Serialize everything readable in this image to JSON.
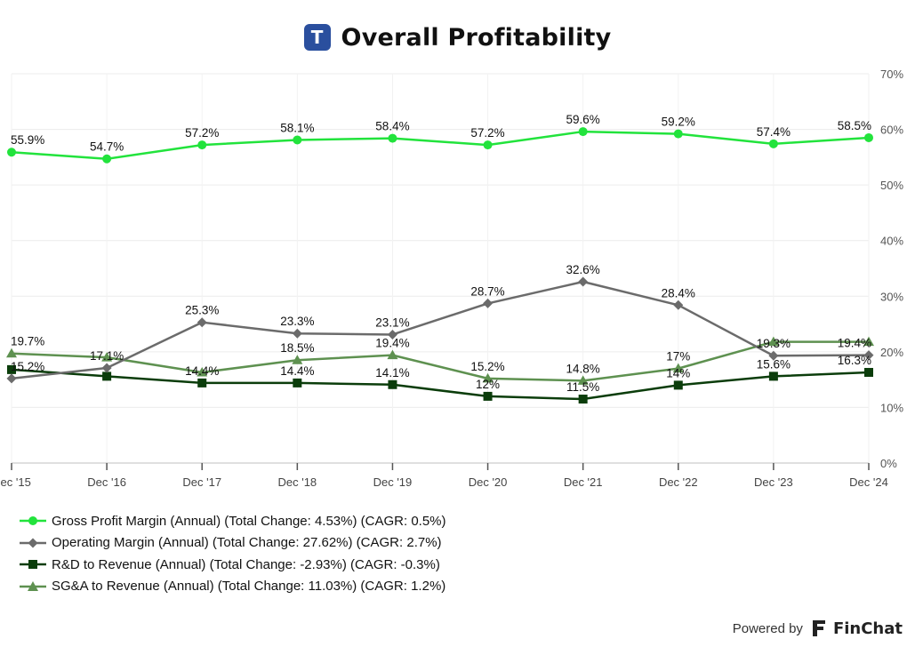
{
  "header": {
    "logo_letter": "T",
    "title": "Overall Profitability"
  },
  "chart_data": {
    "type": "line",
    "title": "Overall Profitability",
    "categories": [
      "Dec '15",
      "Dec '16",
      "Dec '17",
      "Dec '18",
      "Dec '19",
      "Dec '20",
      "Dec '21",
      "Dec '22",
      "Dec '23",
      "Dec '24"
    ],
    "ylim": [
      0,
      70
    ],
    "yticks": [
      0,
      10,
      20,
      30,
      40,
      50,
      60,
      70
    ],
    "ytick_labels": [
      "0%",
      "10%",
      "20%",
      "30%",
      "40%",
      "50%",
      "60%",
      "70%"
    ],
    "y_axis_position": "right",
    "grid": true,
    "series": [
      {
        "name": "Gross Profit Margin",
        "marker": "circle",
        "color": "#22e33c",
        "values": [
          55.9,
          54.7,
          57.2,
          58.1,
          58.4,
          57.2,
          59.6,
          59.2,
          57.4,
          58.5
        ],
        "labels": [
          "55.9%",
          "54.7%",
          "57.2%",
          "58.1%",
          "58.4%",
          "57.2%",
          "59.6%",
          "59.2%",
          "57.4%",
          "58.5%"
        ]
      },
      {
        "name": "Operating Margin",
        "marker": "diamond",
        "color": "#6b6b6b",
        "values": [
          15.2,
          17.1,
          25.3,
          23.3,
          23.1,
          28.7,
          32.6,
          28.4,
          19.3,
          19.4
        ],
        "labels": [
          "15.2%",
          "17.1%",
          "25.3%",
          "23.3%",
          "23.1%",
          "28.7%",
          "32.6%",
          "28.4%",
          "19.3%",
          "19.4%"
        ]
      },
      {
        "name": "R&D to Revenue",
        "marker": "square",
        "color": "#0b3d0b",
        "values": [
          16.8,
          15.6,
          14.4,
          14.4,
          14.1,
          12,
          11.5,
          14,
          15.6,
          16.3
        ],
        "labels": [
          "",
          "",
          "14.4%",
          "14.4%",
          "14.1%",
          "12%",
          "11.5%",
          "14%",
          "15.6%",
          "16.3%"
        ]
      },
      {
        "name": "SG&A to Revenue",
        "marker": "triangle",
        "color": "#5e9150",
        "values": [
          19.7,
          19.0,
          16.3,
          18.5,
          19.4,
          15.2,
          14.8,
          17,
          21.8,
          21.8
        ],
        "labels": [
          "19.7%",
          "",
          "",
          "18.5%",
          "19.4%",
          "15.2%",
          "14.8%",
          "17%",
          "",
          ""
        ]
      }
    ]
  },
  "legend": [
    {
      "label": "Gross Profit Margin (Annual) (Total Change: 4.53%) (CAGR: 0.5%)",
      "marker": "circle",
      "color": "#22e33c"
    },
    {
      "label": "Operating Margin (Annual) (Total Change: 27.62%) (CAGR: 2.7%)",
      "marker": "diamond",
      "color": "#6b6b6b"
    },
    {
      "label": "R&D to Revenue (Annual) (Total Change: -2.93%) (CAGR: -0.3%)",
      "marker": "square",
      "color": "#0b3d0b"
    },
    {
      "label": "SG&A to Revenue (Annual) (Total Change: 11.03%) (CAGR: 1.2%)",
      "marker": "triangle",
      "color": "#5e9150"
    }
  ],
  "footer": {
    "powered_by": "Powered by",
    "brand": "FinChat"
  }
}
